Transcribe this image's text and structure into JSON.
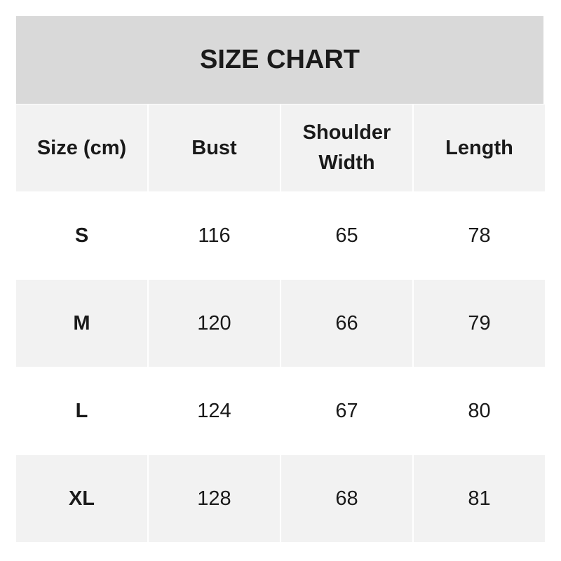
{
  "title": "SIZE CHART",
  "headers": [
    "Size (cm)",
    "Bust",
    "Shoulder Width",
    "Length"
  ],
  "rows": [
    [
      "S",
      "116",
      "65",
      "78"
    ],
    [
      "M",
      "120",
      "66",
      "79"
    ],
    [
      "L",
      "124",
      "67",
      "80"
    ],
    [
      "XL",
      "128",
      "68",
      "81"
    ]
  ],
  "colors": {
    "title_bg": "#d9d9d9",
    "stripe_bg": "#f2f2f2",
    "text": "#1a1a1a"
  }
}
